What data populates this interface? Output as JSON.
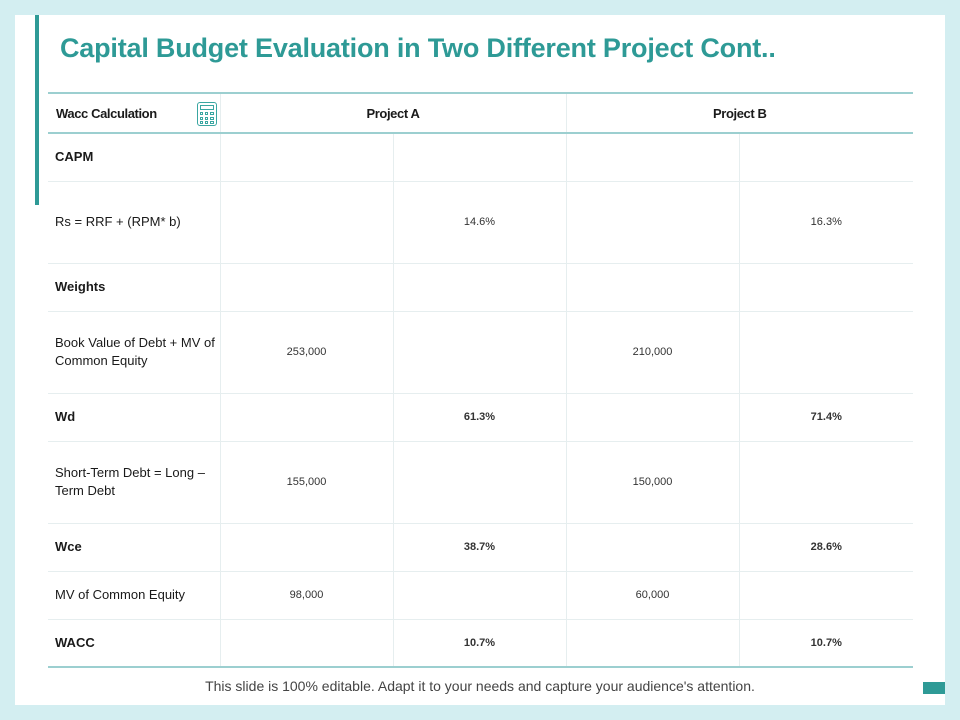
{
  "title": "Capital Budget Evaluation in Two Different Project Cont..",
  "table": {
    "header": {
      "label": "Wacc Calculation",
      "project_a": "Project A",
      "project_b": "Project B"
    },
    "rows": [
      {
        "label": "CAPM",
        "a1": "",
        "a2": "",
        "b1": "",
        "b2": ""
      },
      {
        "label": "Rs = RRF + (RPM* b)",
        "a1": "",
        "a2": "14.6%",
        "b1": "",
        "b2": "16.3%"
      },
      {
        "label": "Weights",
        "a1": "",
        "a2": "",
        "b1": "",
        "b2": ""
      },
      {
        "label": "Book Value of Debt + MV of Common Equity",
        "a1": "253,000",
        "a2": "",
        "b1": "210,000",
        "b2": ""
      },
      {
        "label": "Wd",
        "a1": "",
        "a2": "61.3%",
        "b1": "",
        "b2": "71.4%"
      },
      {
        "label": "Short-Term Debt = Long – Term Debt",
        "a1": "155,000",
        "a2": "",
        "b1": "150,000",
        "b2": ""
      },
      {
        "label": "Wce",
        "a1": "",
        "a2": "38.7%",
        "b1": "",
        "b2": "28.6%"
      },
      {
        "label": "MV of Common Equity",
        "a1": "98,000",
        "a2": "",
        "b1": "60,000",
        "b2": ""
      },
      {
        "label": "WACC",
        "a1": "",
        "a2": "10.7%",
        "b1": "",
        "b2": "10.7%"
      }
    ]
  },
  "footer": "This slide is 100% editable. Adapt it to your needs and capture your audience's attention.",
  "colors": {
    "accent": "#2e9a96",
    "background": "#d3eef1",
    "rule": "#9ccfd0"
  }
}
